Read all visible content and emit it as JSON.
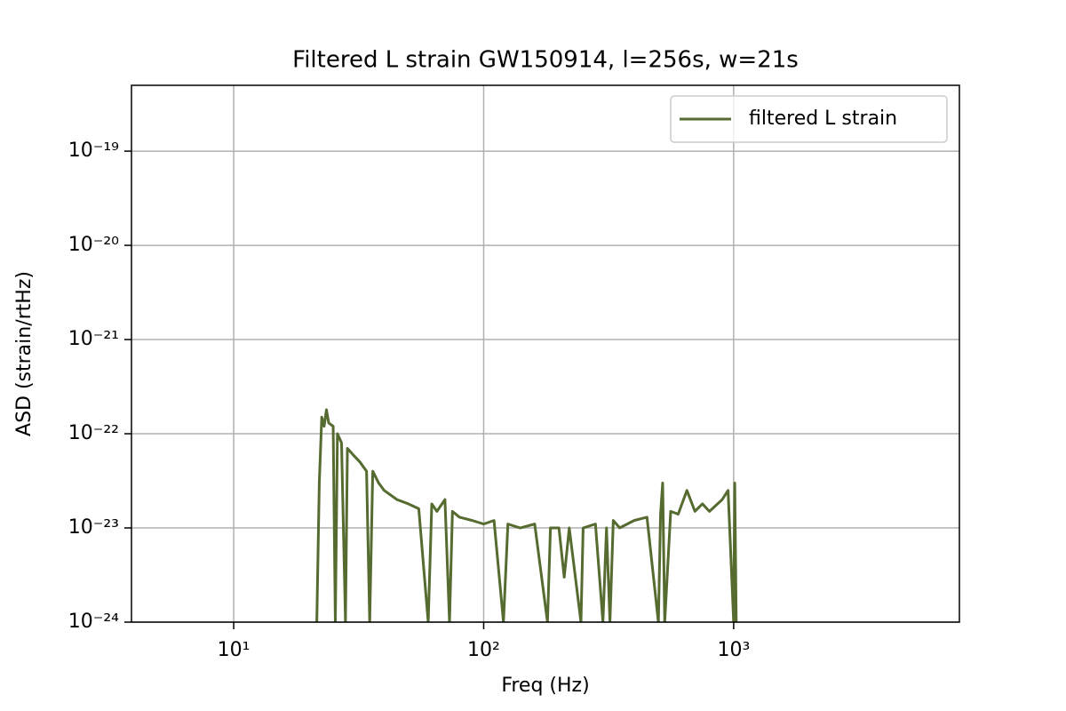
{
  "chart_data": {
    "type": "line",
    "title": "Filtered L strain GW150914, l=256s, w=21s",
    "x_label": "Freq (Hz)",
    "y_label": "ASD (strain/rtHz)",
    "x_scale": "log",
    "y_scale": "log",
    "grid": true,
    "legend_position": "upper right",
    "xlim": [
      3.9,
      8000
    ],
    "ylim": [
      1e-24,
      5e-19
    ],
    "xticks": [
      {
        "value": 10,
        "label": "10¹"
      },
      {
        "value": 100,
        "label": "10²"
      },
      {
        "value": 1000,
        "label": "10³"
      }
    ],
    "yticks": [
      {
        "value": 1e-24,
        "label": "10⁻²⁴"
      },
      {
        "value": 1e-23,
        "label": "10⁻²³"
      },
      {
        "value": 1e-22,
        "label": "10⁻²²"
      },
      {
        "value": 1e-21,
        "label": "10⁻²¹"
      },
      {
        "value": 1e-20,
        "label": "10⁻²⁰"
      },
      {
        "value": 1e-19,
        "label": "10⁻¹⁹"
      }
    ],
    "x": [
      21.5,
      22,
      22.5,
      23,
      23.5,
      24,
      25,
      25.5,
      26,
      27,
      28,
      28.5,
      30,
      32,
      34,
      35,
      36,
      38,
      40,
      45,
      50,
      55,
      60,
      62,
      65,
      70,
      73,
      75,
      80,
      90,
      100,
      110,
      120,
      125,
      140,
      160,
      180,
      185,
      200,
      210,
      220,
      245,
      250,
      280,
      300,
      310,
      320,
      330,
      350,
      400,
      450,
      500,
      510,
      520,
      530,
      560,
      600,
      650,
      700,
      750,
      800,
      900,
      950,
      1000,
      1010,
      1024
    ],
    "series": [
      {
        "name": "filtered L strain",
        "color": "#556b2f",
        "values": [
          1e-24,
          3e-23,
          1.5e-22,
          1.2e-22,
          1.8e-22,
          1.3e-22,
          1.2e-22,
          1e-24,
          1e-22,
          8e-23,
          1e-24,
          7e-23,
          6e-23,
          5e-23,
          4e-23,
          1e-24,
          4e-23,
          3e-23,
          2.5e-23,
          2e-23,
          1.8e-23,
          1.6e-23,
          1e-24,
          1.8e-23,
          1.5e-23,
          2e-23,
          1e-24,
          1.5e-23,
          1.3e-23,
          1.2e-23,
          1.1e-23,
          1.2e-23,
          1e-24,
          1.1e-23,
          1e-23,
          1.1e-23,
          1e-24,
          1e-23,
          1e-23,
          3e-24,
          1e-23,
          1e-24,
          1e-23,
          1.1e-23,
          1e-24,
          1e-23,
          1e-24,
          1.2e-23,
          1e-23,
          1.2e-23,
          1.3e-23,
          1e-24,
          1.4e-23,
          3e-23,
          1e-24,
          1.5e-23,
          1.4e-23,
          2.5e-23,
          1.5e-23,
          1.8e-23,
          1.5e-23,
          2e-23,
          2.5e-23,
          1e-24,
          3e-23,
          1e-24
        ]
      }
    ]
  }
}
